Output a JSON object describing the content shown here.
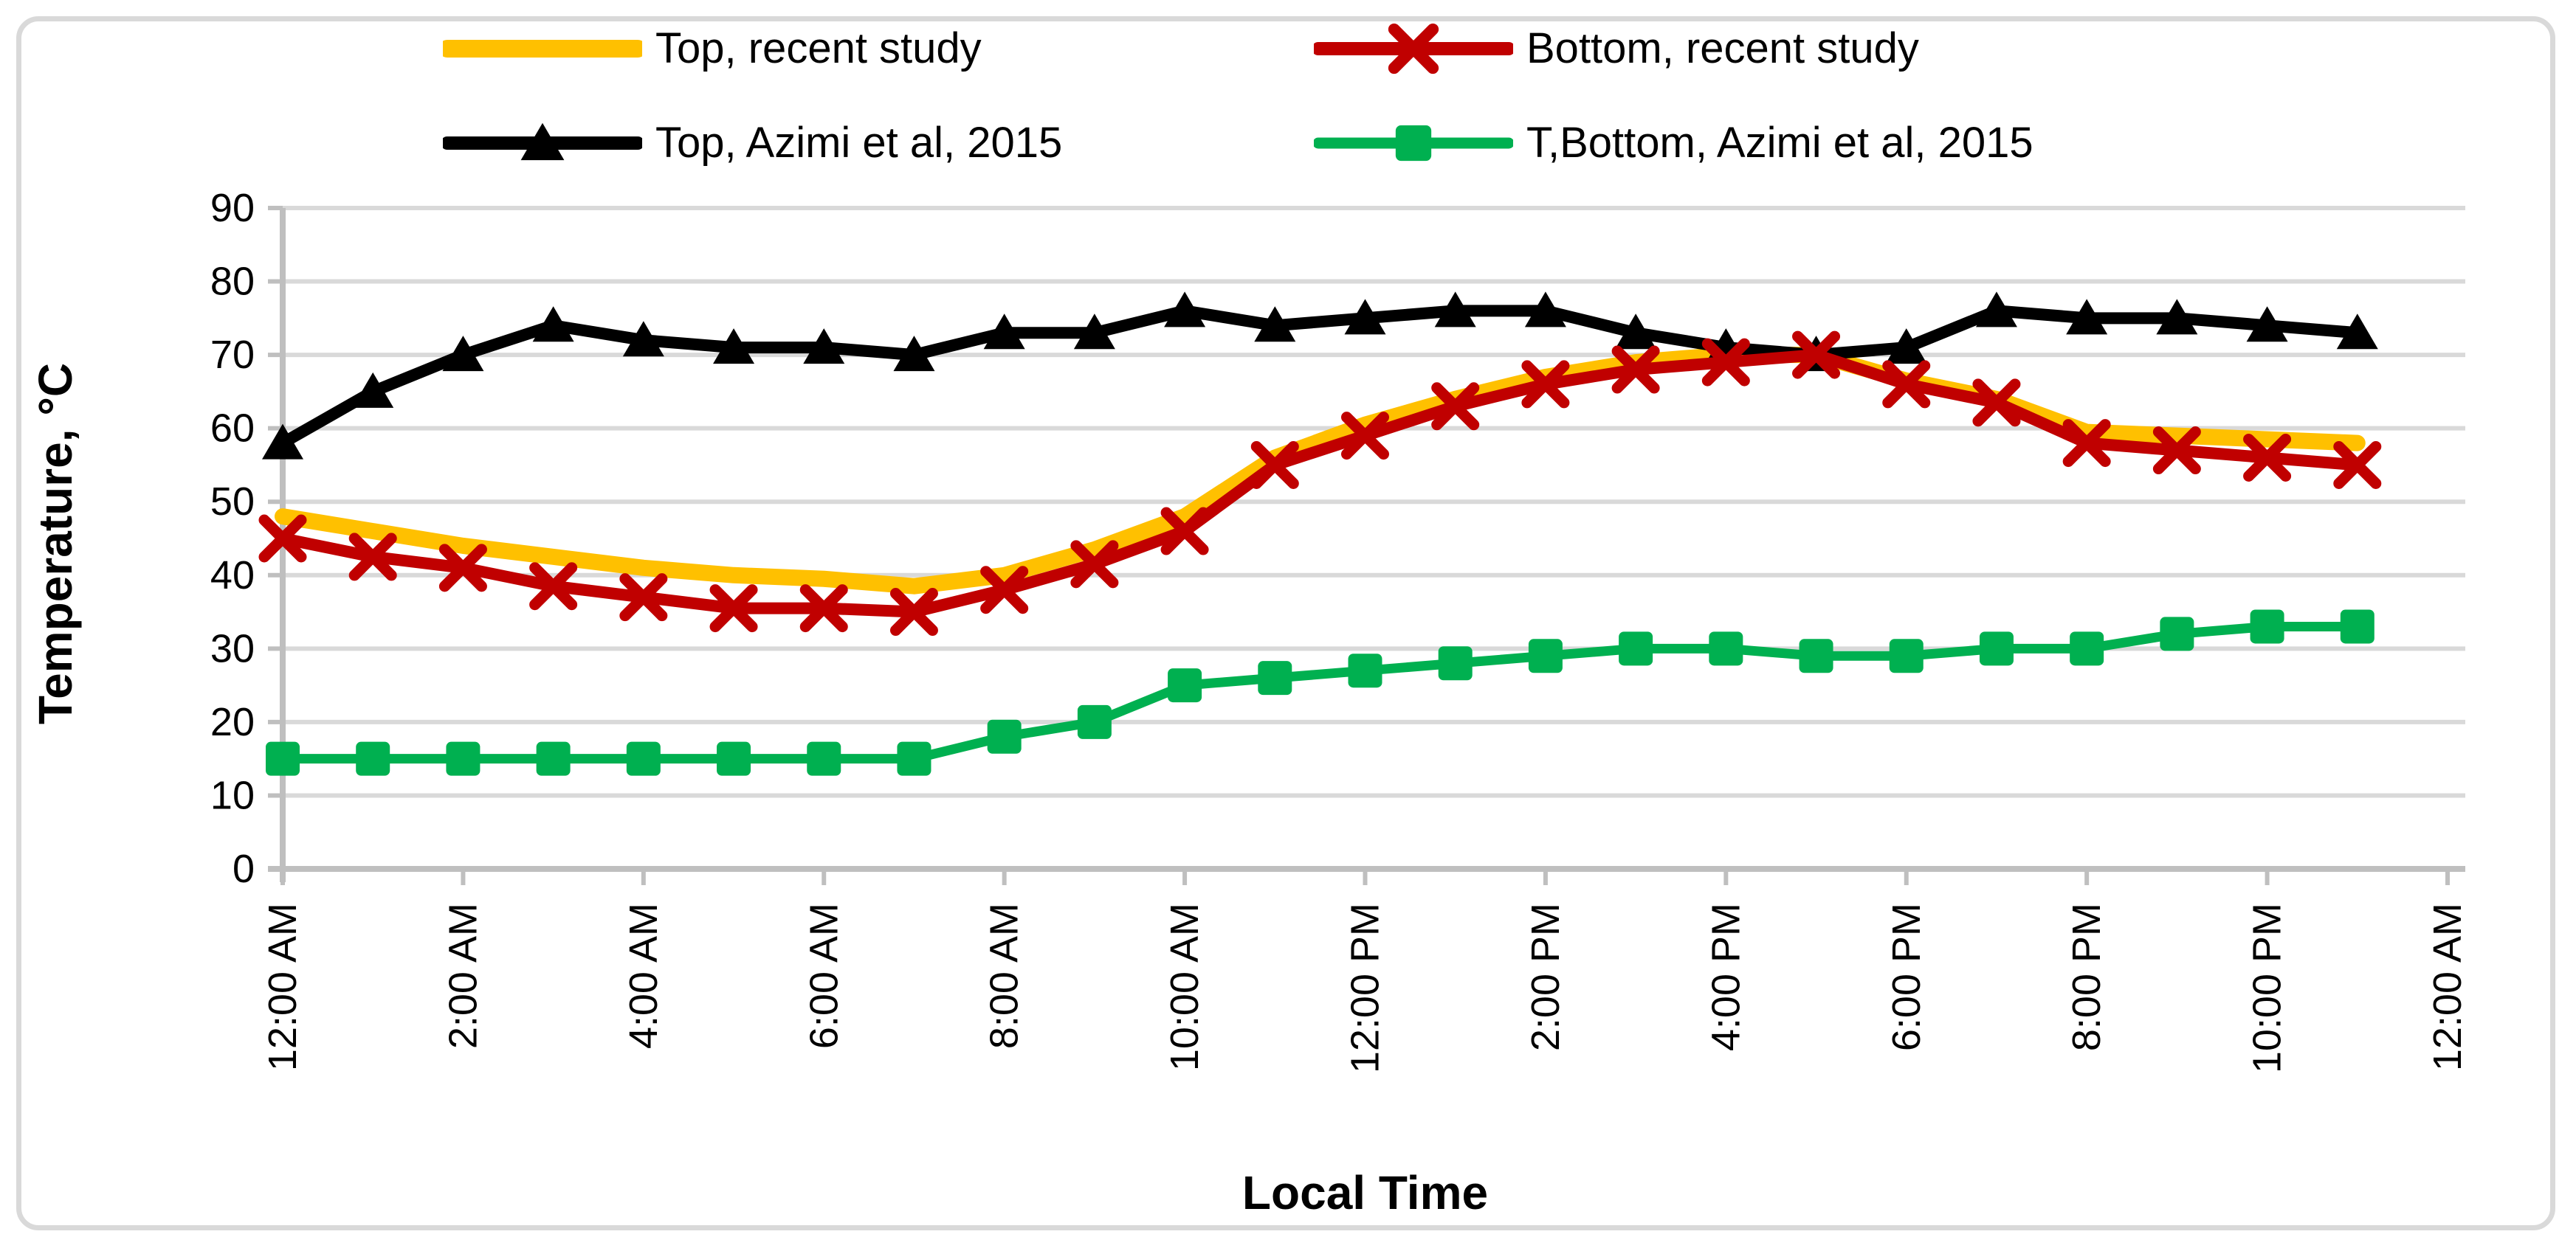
{
  "chart_data": {
    "type": "line",
    "title": "",
    "xlabel": "Local Time",
    "ylabel": "Temperature, °C",
    "ylim": [
      0,
      90
    ],
    "y_ticks": [
      0,
      10,
      20,
      30,
      40,
      50,
      60,
      70,
      80,
      90
    ],
    "x_tick_labels": [
      "12:00 AM",
      "2:00 AM",
      "4:00 AM",
      "6:00 AM",
      "8:00 AM",
      "10:00 AM",
      "12:00 PM",
      "2:00 PM",
      "4:00 PM",
      "6:00 PM",
      "8:00 PM",
      "10:00 PM",
      "12:00 AM"
    ],
    "categories": [
      "12:00 AM",
      "1:00 AM",
      "2:00 AM",
      "3:00 AM",
      "4:00 AM",
      "5:00 AM",
      "6:00 AM",
      "7:00 AM",
      "8:00 AM",
      "9:00 AM",
      "10:00 AM",
      "11:00 AM",
      "12:00 PM",
      "1:00 PM",
      "2:00 PM",
      "3:00 PM",
      "4:00 PM",
      "5:00 PM",
      "6:00 PM",
      "7:00 PM",
      "8:00 PM",
      "9:00 PM",
      "10:00 PM",
      "11:00 PM"
    ],
    "grid": "horizontal",
    "legend_position": "top",
    "colors": {
      "background": "#ffffff",
      "grid": "#d9d9d9",
      "axis": "#bfbfbf",
      "frame": "#d9d9d9",
      "text": "#000000"
    },
    "series": [
      {
        "name": "Top, recent study",
        "color": "#ffc000",
        "marker": "none",
        "line_width": 22,
        "values": [
          48,
          46,
          44,
          42.5,
          41,
          40,
          39.5,
          38.5,
          40,
          43.5,
          48,
          56,
          60.5,
          64,
          67,
          69,
          70,
          70,
          66.5,
          64,
          59.5,
          59,
          58.5,
          58
        ]
      },
      {
        "name": "Bottom, recent study",
        "color": "#c00000",
        "marker": "x",
        "line_width": 16,
        "values": [
          45,
          42.5,
          41,
          38.5,
          37,
          35.5,
          35.5,
          35,
          38,
          41.5,
          46,
          55,
          59,
          63,
          66,
          68,
          69,
          70,
          66,
          63.5,
          58,
          57,
          56,
          55
        ]
      },
      {
        "name": "Top, Azimi et al, 2015",
        "color": "#000000",
        "marker": "triangle",
        "line_width": 16,
        "values": [
          58,
          65,
          70,
          74,
          72,
          71,
          71,
          70,
          73,
          73,
          76,
          74,
          75,
          76,
          76,
          73,
          71,
          70,
          71,
          76,
          75,
          75,
          74,
          73
        ]
      },
      {
        "name": "T,Bottom, Azimi et al, 2015",
        "color": "#00b050",
        "marker": "square",
        "line_width": 13,
        "values": [
          15,
          15,
          15,
          15,
          15,
          15,
          15,
          15,
          18,
          20,
          25,
          26,
          27,
          28,
          29,
          30,
          30,
          29,
          29,
          30,
          30,
          32,
          33,
          33
        ]
      }
    ]
  }
}
